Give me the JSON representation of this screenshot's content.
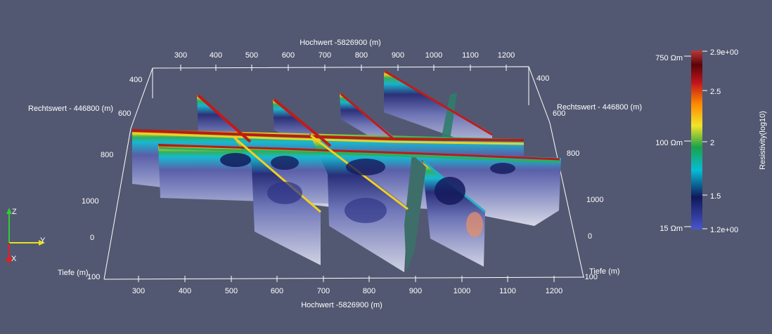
{
  "axes": {
    "top_title": "Hochwert -5826900 (m)",
    "bottom_title": "Hochwert -5826900 (m)",
    "left_title": "Rechtswert - 446800 (m)",
    "right_title": "Rechtswert - 446800 (m)",
    "left_depth_title": "Tiefe (m)",
    "right_depth_title": "Tiefe (m)",
    "top_ticks": [
      "300",
      "400",
      "500",
      "600",
      "700",
      "800",
      "900",
      "1000",
      "1100",
      "1200"
    ],
    "bottom_ticks": [
      "300",
      "400",
      "500",
      "600",
      "700",
      "800",
      "900",
      "1000",
      "1100",
      "1200"
    ],
    "left_upper_ticks": [
      "400",
      "600"
    ],
    "left_lower_ticks": [
      "800",
      "1000",
      "0",
      "100"
    ],
    "right_upper_ticks": [
      "400",
      "600"
    ],
    "right_lower_ticks": [
      "800",
      "1000",
      "0",
      "-100"
    ]
  },
  "orientation": {
    "z": "Z",
    "y": "Y",
    "x": "X"
  },
  "colorbar": {
    "title": "Resistivity(log10)",
    "tick_labels": [
      "2.9e+00",
      "2.5",
      "2",
      "1.5",
      "1.2e+00"
    ],
    "annotations": [
      "750 Ωm",
      "100 Ωm",
      "15 Ωm"
    ],
    "colors": [
      "#3b4cc0",
      "#0f1a5a",
      "#00bcd4",
      "#1aa84a",
      "#f2e42a",
      "#ff8a00",
      "#c0141c",
      "#5a0408",
      "#b93a3a"
    ]
  }
}
